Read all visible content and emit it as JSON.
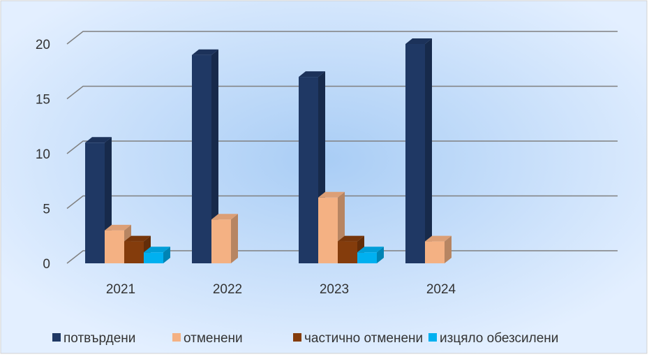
{
  "chart_data": {
    "type": "bar3d",
    "categories": [
      "2021",
      "2022",
      "2023",
      "2024"
    ],
    "series": [
      {
        "name": "потвърдени",
        "color": "#1f3864",
        "values": [
          11,
          19,
          17,
          20
        ]
      },
      {
        "name": "отменени",
        "color": "#f4b183",
        "values": [
          3,
          4,
          6,
          2
        ]
      },
      {
        "name": "частично отменени",
        "color": "#843c0c",
        "values": [
          2,
          null,
          2,
          null
        ]
      },
      {
        "name": "изцяло обезсилени",
        "color": "#00b0f0",
        "values": [
          1,
          null,
          1,
          null
        ]
      }
    ],
    "ylim": [
      0,
      20
    ],
    "yticks": [
      0,
      5,
      10,
      15,
      20
    ],
    "grid": true,
    "legend": "bottom"
  }
}
